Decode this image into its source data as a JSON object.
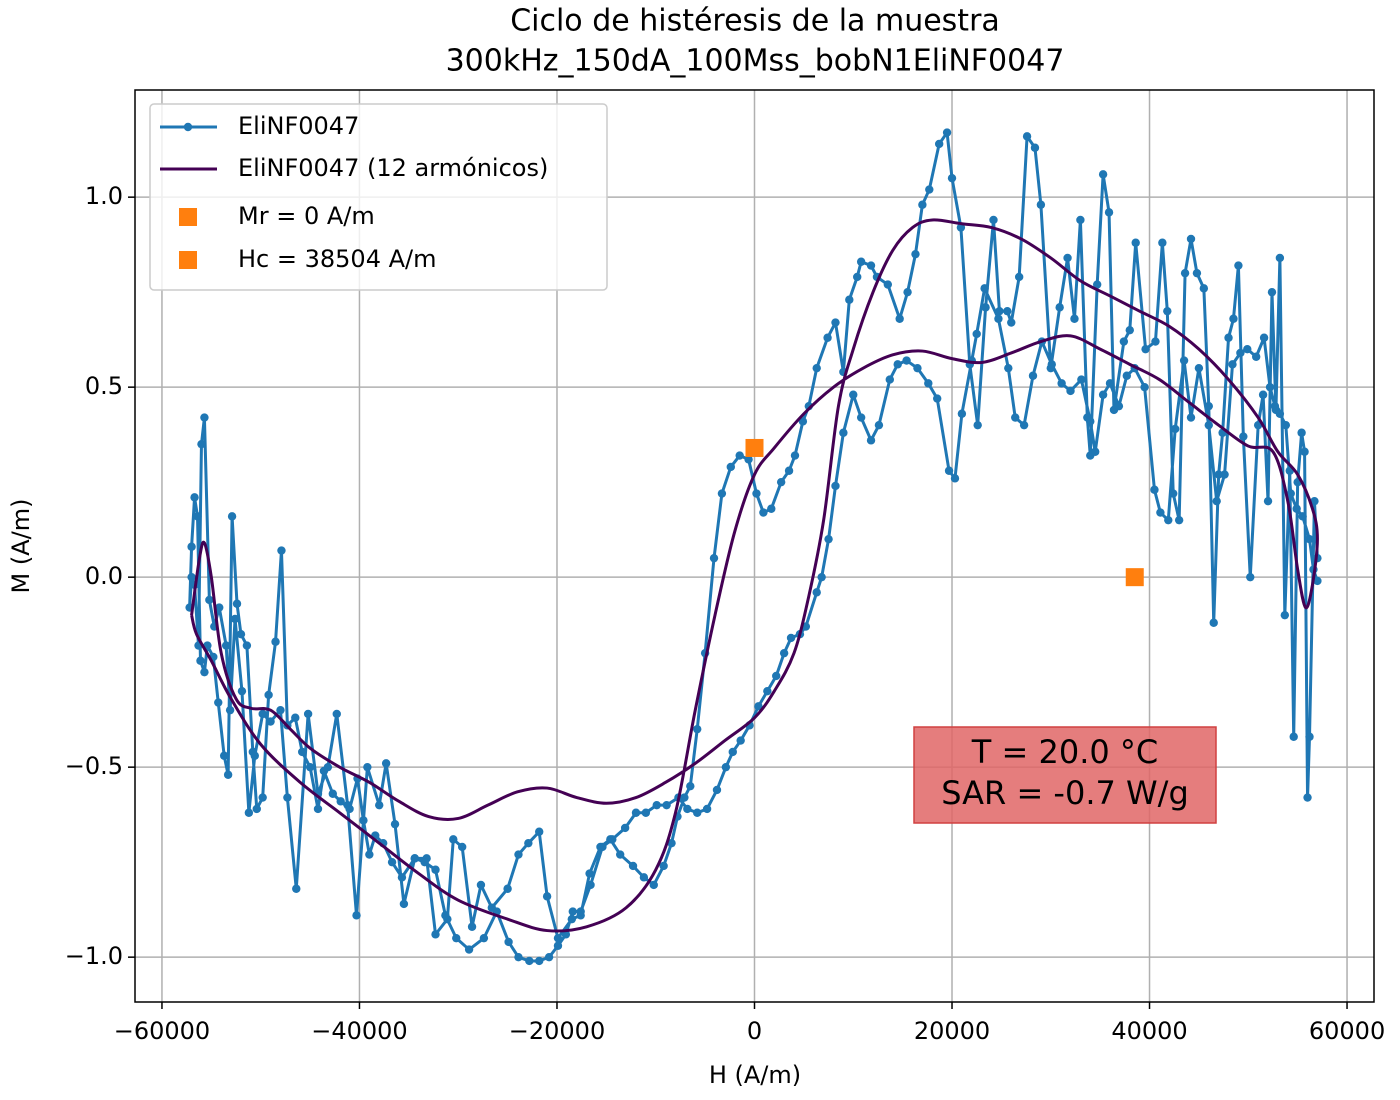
{
  "chart_data": {
    "type": "line",
    "title": "Ciclo de histéresis de la muestra",
    "subtitle": "300kHz_150dA_100Mss_bobN1EliNF0047",
    "x_label": "H (A/m)",
    "y_label": "M (A/m)",
    "xlim": [
      -62730,
      62730
    ],
    "ylim": [
      -1.118,
      1.282
    ],
    "xticks": [
      {
        "value": -60000,
        "label": "−60000"
      },
      {
        "value": -40000,
        "label": "−40000"
      },
      {
        "value": -20000,
        "label": "−20000"
      },
      0,
      20000,
      40000,
      60000
    ],
    "yticks": [
      {
        "value": -1,
        "label": "−1.0"
      },
      {
        "value": -0.5,
        "label": "−0.5"
      },
      {
        "value": 0,
        "label": "0.0"
      },
      {
        "value": 0.5,
        "label": "0.5"
      },
      {
        "value": 1,
        "label": "1.0"
      }
    ],
    "grid": true,
    "legend": "upper left",
    "series": [
      {
        "name": "EliNF0047",
        "color": "#1f77b4",
        "markers": true,
        "smooth": false,
        "x": [
          57000,
          56700,
          56200,
          56000,
          55700,
          55400,
          55000,
          54600,
          54200,
          53700,
          53200,
          52800,
          52400,
          52000,
          51500,
          51000,
          50200,
          49500,
          49000,
          48500,
          48000,
          47400,
          47000,
          46500,
          46000,
          45500,
          44800,
          44200,
          43600,
          43000,
          42400,
          41800,
          41300,
          40600,
          39600,
          38600,
          38000,
          37400,
          36400,
          35900,
          35300,
          34700,
          34000,
          33700,
          33000,
          32400,
          31700,
          30900,
          30000,
          29000,
          28400,
          27600,
          26800,
          26000,
          25600,
          24800,
          24200,
          23400,
          22600,
          21800,
          20900,
          20000,
          19500,
          18700,
          17700,
          17000,
          16300,
          15500,
          14700,
          13500,
          12400,
          11800,
          10800,
          10400,
          9600,
          9000,
          8200,
          7400,
          6300,
          5500,
          4900,
          4100,
          3500,
          2700,
          1700,
          900,
          200,
          -600,
          -1500,
          -2400,
          -3300,
          -4100,
          -5000,
          -5800,
          -6500,
          -7100,
          -7800,
          -8400,
          -9200,
          -10200,
          -11200,
          -12300,
          -13600,
          -14600,
          -15600,
          -16700,
          -17600,
          -18500,
          -19900,
          -21000,
          -21800,
          -22900,
          -23900,
          -25000,
          -26600,
          -27700,
          -28600,
          -29600,
          -30500,
          -31100,
          -32300,
          -33200,
          -34400,
          -35500,
          -36400,
          -37300,
          -38000,
          -39200,
          -40300,
          -41200,
          -42300,
          -43200,
          -44200,
          -45200,
          -46400,
          -47300,
          -48000,
          -49000,
          -49800,
          -50600,
          -51200,
          -51900,
          -52600,
          -53100,
          -53500,
          -54200,
          -54700,
          -55200,
          -55700,
          -56000,
          -56300,
          -56700,
          -57000,
          -57200,
          -57000,
          -56700,
          -56400,
          -56100,
          -55700,
          -55400,
          -54800,
          -54300,
          -53700,
          -53300,
          -52900,
          -52400,
          -52000,
          -51400,
          -50800,
          -50400,
          -49800,
          -49200,
          -48500,
          -47900,
          -47300,
          -46500,
          -45800,
          -45000,
          -44200,
          -43600,
          -42700,
          -41900,
          -41000,
          -40200,
          -39600,
          -39000,
          -38400,
          -37600,
          -36700,
          -35700,
          -34400,
          -33400,
          -32300,
          -31300,
          -30200,
          -28900,
          -27400,
          -26100,
          -24900,
          -23900,
          -22800,
          -21800,
          -20800,
          -19900,
          -19100,
          -18400,
          -17600,
          -16600,
          -15400,
          -14400,
          -13100,
          -12000,
          -11000,
          -9900,
          -8900,
          -7700,
          -6800,
          -5800,
          -4800,
          -3800,
          -2900,
          -2200,
          -1400,
          -500,
          400,
          1300,
          2200,
          3000,
          3700,
          4600,
          5200,
          6300,
          6800,
          7500,
          8200,
          9000,
          10000,
          10800,
          11800,
          12600,
          13700,
          14500,
          15400,
          16500,
          17600,
          18500,
          19700,
          20300,
          21000,
          22000,
          22500,
          23300,
          24700,
          25700,
          26400,
          27300,
          28200,
          29100,
          30100,
          31100,
          32000,
          33100,
          34000,
          34500,
          35300,
          36000,
          36900,
          37700,
          38500,
          39500,
          40500,
          41100,
          41900,
          42600,
          43500,
          44200,
          45000,
          46000,
          46800,
          47600,
          48400,
          49200,
          49900,
          50800,
          51600,
          52200,
          52700,
          53200,
          53800,
          54300,
          54900,
          55500,
          56200,
          56600,
          57000
        ],
        "values": [
          0.05,
          0.2,
          -0.42,
          -0.58,
          0.33,
          0.38,
          0.25,
          -0.42,
          0.28,
          -0.1,
          0.84,
          0.44,
          0.75,
          0.2,
          0.48,
          0.4,
          0.0,
          0.37,
          0.82,
          0.68,
          0.63,
          0.38,
          0.27,
          -0.12,
          0.45,
          0.76,
          0.8,
          0.89,
          0.8,
          0.15,
          0.22,
          0.7,
          0.88,
          0.62,
          0.6,
          0.88,
          0.65,
          0.62,
          0.44,
          0.96,
          1.06,
          0.77,
          0.32,
          0.42,
          0.94,
          0.68,
          0.84,
          0.71,
          0.55,
          0.98,
          1.13,
          1.16,
          0.79,
          0.67,
          0.7,
          0.7,
          0.94,
          0.71,
          0.4,
          0.56,
          0.92,
          1.05,
          1.17,
          1.14,
          1.02,
          0.98,
          0.85,
          0.75,
          0.68,
          0.77,
          0.79,
          0.82,
          0.83,
          0.79,
          0.73,
          0.54,
          0.67,
          0.63,
          0.55,
          0.45,
          0.41,
          0.32,
          0.28,
          0.25,
          0.18,
          0.17,
          0.22,
          0.31,
          0.32,
          0.29,
          0.22,
          0.05,
          -0.2,
          -0.4,
          -0.55,
          -0.58,
          -0.63,
          -0.7,
          -0.76,
          -0.81,
          -0.79,
          -0.76,
          -0.73,
          -0.69,
          -0.71,
          -0.78,
          -0.89,
          -0.9,
          -0.95,
          -0.84,
          -0.67,
          -0.7,
          -0.73,
          -0.82,
          -0.87,
          -0.81,
          -0.92,
          -0.71,
          -0.69,
          -0.9,
          -0.94,
          -0.74,
          -0.74,
          -0.86,
          -0.65,
          -0.49,
          -0.6,
          -0.5,
          -0.89,
          -0.6,
          -0.36,
          -0.5,
          -0.57,
          -0.36,
          -0.82,
          -0.58,
          -0.35,
          -0.38,
          -0.36,
          -0.47,
          -0.62,
          -0.3,
          -0.11,
          -0.35,
          -0.18,
          -0.08,
          -0.13,
          -0.06,
          0.42,
          0.35,
          -0.18,
          -0.02,
          0.0,
          -0.08,
          0.08,
          0.21,
          0.16,
          -0.22,
          -0.25,
          -0.18,
          -0.21,
          -0.33,
          -0.47,
          -0.52,
          0.16,
          -0.07,
          -0.15,
          -0.18,
          -0.46,
          -0.61,
          -0.58,
          -0.31,
          -0.17,
          0.07,
          -0.39,
          -0.37,
          -0.46,
          -0.5,
          -0.61,
          -0.51,
          -0.57,
          -0.59,
          -0.61,
          -0.53,
          -0.64,
          -0.73,
          -0.68,
          -0.7,
          -0.75,
          -0.79,
          -0.74,
          -0.75,
          -0.77,
          -0.89,
          -0.95,
          -0.98,
          -0.95,
          -0.88,
          -0.96,
          -1.0,
          -1.01,
          -1.01,
          -1.0,
          -0.97,
          -0.94,
          -0.88,
          -0.88,
          -0.81,
          -0.71,
          -0.69,
          -0.66,
          -0.62,
          -0.62,
          -0.6,
          -0.6,
          -0.58,
          -0.61,
          -0.62,
          -0.61,
          -0.56,
          -0.5,
          -0.46,
          -0.43,
          -0.39,
          -0.34,
          -0.3,
          -0.26,
          -0.2,
          -0.16,
          -0.15,
          -0.13,
          -0.04,
          0.0,
          0.1,
          0.24,
          0.38,
          0.48,
          0.42,
          0.36,
          0.4,
          0.52,
          0.56,
          0.57,
          0.55,
          0.51,
          0.47,
          0.28,
          0.26,
          0.43,
          0.57,
          0.64,
          0.76,
          0.68,
          0.55,
          0.42,
          0.4,
          0.53,
          0.62,
          0.56,
          0.51,
          0.49,
          0.52,
          0.41,
          0.33,
          0.48,
          0.51,
          0.45,
          0.53,
          0.55,
          0.5,
          0.23,
          0.17,
          0.15,
          0.39,
          0.57,
          0.42,
          0.55,
          0.4,
          0.2,
          0.27,
          0.56,
          0.59,
          0.6,
          0.58,
          0.63,
          0.5,
          0.45,
          0.43,
          0.4,
          0.22,
          0.18,
          0.16,
          0.1,
          0.02,
          -0.01
        ]
      },
      {
        "name": "EliNF0047 (12 armónicos)",
        "color": "#440154",
        "markers": false,
        "smooth": true,
        "x": [
          -57000,
          -56200,
          -55700,
          -55000,
          -54000,
          -52500,
          -51000,
          -49000,
          -47000,
          -45000,
          -42000,
          -39000,
          -36000,
          -33000,
          -30000,
          -27000,
          -24000,
          -21000,
          -18000,
          -15000,
          -12000,
          -9000,
          -6000,
          -3000,
          0,
          2000,
          4000,
          5500,
          7000,
          8500,
          10000,
          12000,
          14000,
          16000,
          18000,
          21000,
          24000,
          27000,
          30000,
          33000,
          36000,
          39000,
          42000,
          45000,
          48000,
          51000,
          53000,
          55000,
          56500,
          57000,
          56500,
          55800,
          55000,
          54000,
          52500,
          50000,
          47000,
          44000,
          41000,
          38000,
          35000,
          32000,
          29000,
          26000,
          23000,
          20000,
          17000,
          14000,
          11000,
          8000,
          5000,
          2000,
          0,
          -2000,
          -4000,
          -6000,
          -8000,
          -10000,
          -13000,
          -17000,
          -21000,
          -25000,
          -30000,
          -34000,
          -38000,
          -42000,
          -46000,
          -50000,
          -53000,
          -55000,
          -56500,
          -57000
        ],
        "values": [
          -0.1,
          0.05,
          0.09,
          0.0,
          -0.2,
          -0.32,
          -0.345,
          -0.35,
          -0.4,
          -0.45,
          -0.5,
          -0.54,
          -0.59,
          -0.63,
          -0.635,
          -0.6,
          -0.565,
          -0.555,
          -0.58,
          -0.595,
          -0.58,
          -0.54,
          -0.49,
          -0.43,
          -0.37,
          -0.3,
          -0.2,
          -0.05,
          0.15,
          0.45,
          0.6,
          0.75,
          0.86,
          0.92,
          0.94,
          0.93,
          0.92,
          0.89,
          0.84,
          0.78,
          0.74,
          0.7,
          0.66,
          0.6,
          0.52,
          0.42,
          0.33,
          0.27,
          0.18,
          0.1,
          -0.02,
          -0.08,
          0.02,
          0.2,
          0.33,
          0.345,
          0.4,
          0.46,
          0.52,
          0.56,
          0.6,
          0.635,
          0.62,
          0.59,
          0.565,
          0.575,
          0.595,
          0.585,
          0.55,
          0.5,
          0.43,
          0.34,
          0.27,
          0.12,
          -0.1,
          -0.35,
          -0.62,
          -0.77,
          -0.87,
          -0.92,
          -0.93,
          -0.9,
          -0.85,
          -0.78,
          -0.7,
          -0.62,
          -0.54,
          -0.44,
          -0.32,
          -0.22,
          -0.15,
          -0.1
        ]
      }
    ],
    "points": [
      {
        "name": "Mr = 0 A/m",
        "color": "#ff7f0e",
        "x": 0,
        "y": 0.34
      },
      {
        "name": "Hc = 38504 A/m",
        "color": "#ff7f0e",
        "x": 38504,
        "y": 0
      }
    ],
    "annotation": [
      "T = 20.0 °C",
      "SAR = -0.7 W/g"
    ],
    "annotation_color": "#e06666"
  }
}
